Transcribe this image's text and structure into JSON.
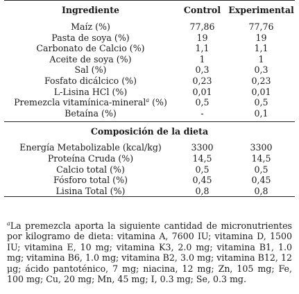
{
  "table": {
    "headers": {
      "ingredient": "Ingrediente",
      "control": "Control",
      "experimental": "Experimental"
    },
    "ingredients": [
      {
        "name": "Maíz (%)",
        "control": "77,86",
        "experimental": "77,76"
      },
      {
        "name": "Pasta de soya (%)",
        "control": "19",
        "experimental": "19"
      },
      {
        "name": "Carbonato de Calcio (%)",
        "control": "1,1",
        "experimental": "1,1"
      },
      {
        "name": "Aceite de soya (%)",
        "control": "1",
        "experimental": "1"
      },
      {
        "name": "Sal (%)",
        "control": "0,3",
        "experimental": "0,3"
      },
      {
        "name": "Fosfato dicálcico (%)",
        "control": "0,23",
        "experimental": "0,23"
      },
      {
        "name": "L-Lisina HCl (%)",
        "control": "0,01",
        "experimental": "0,01"
      },
      {
        "name": "Premezcla vitamínica-mineral",
        "sup": "a",
        "suffix": " (%)",
        "control": "0,5",
        "experimental": "0,5"
      },
      {
        "name": "Betaína (%)",
        "control": "-",
        "experimental": "0,1"
      }
    ],
    "section_title": "Composición de la dieta",
    "composition": [
      {
        "name": "Energía Metabolizable (kcal/kg)",
        "control": "3300",
        "experimental": "3300"
      },
      {
        "name": "Proteína Cruda (%)",
        "control": "14,5",
        "experimental": "14,5"
      },
      {
        "name": "Calcio total (%)",
        "control": "0,5",
        "experimental": "0,5"
      },
      {
        "name": "Fósforo total (%)",
        "control": "0,45",
        "experimental": "0,45"
      },
      {
        "name": "Lisina Total (%)",
        "control": "0,8",
        "experimental": "0,8"
      }
    ]
  },
  "footnote": {
    "marker": "a",
    "text": "La premezcla aporta la siguiente cantidad de micronutrientes por kilogramo de dieta: vitamina A, 7600 IU; vitamina D, 1500 IU; vitamina E, 10 mg; vitamina K3, 2.0 mg; vitamina B1, 1.0 mg; vitamina B6, 1.0 mg; vitamina B2, 3.0 mg; vitamina B12, 12 μg; ácido pantoténico, 7 mg; niacina, 12 mg; Zn, 105 mg; Fe, 100 mg; Cu, 20 mg; Mn, 45 mg; I, 0.3 mg; Se, 0.3 mg."
  }
}
